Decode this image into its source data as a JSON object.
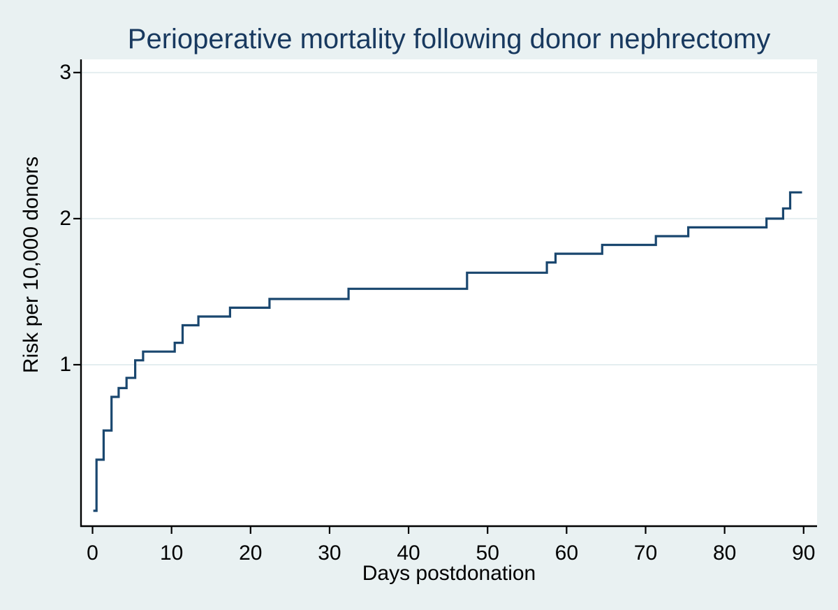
{
  "colors": {
    "page_bg": "#e9f1f2",
    "plot_bg": "#ffffff",
    "gridline": "#e4eef0",
    "axis": "#000000",
    "curve": "#1a476f",
    "title": "#18395f"
  },
  "chart_data": {
    "type": "line",
    "subtype": "step-function cumulative incidence curve",
    "title": "Perioperative mortality following donor nephrectomy",
    "xlabel": "Days postdonation",
    "ylabel": "Risk per 10,000 donors",
    "x_ticks": [
      0,
      10,
      20,
      30,
      40,
      50,
      60,
      70,
      80,
      90
    ],
    "y_ticks": [
      1,
      2,
      3
    ],
    "xlim": [
      -1.46,
      91.7
    ],
    "ylim": [
      -0.105,
      3.09
    ],
    "grid": "horizontal gridlines at each y tick",
    "legend": "none",
    "start": {
      "day": 0.1,
      "risk": 0
    },
    "end_day": 89.8,
    "steps": [
      {
        "day": 0.5,
        "risk": 0.35
      },
      {
        "day": 1.4,
        "risk": 0.55
      },
      {
        "day": 2.4,
        "risk": 0.78
      },
      {
        "day": 3.3,
        "risk": 0.84
      },
      {
        "day": 4.3,
        "risk": 0.91
      },
      {
        "day": 5.4,
        "risk": 1.03
      },
      {
        "day": 6.4,
        "risk": 1.09
      },
      {
        "day": 10.4,
        "risk": 1.15
      },
      {
        "day": 11.4,
        "risk": 1.27
      },
      {
        "day": 13.4,
        "risk": 1.33
      },
      {
        "day": 17.4,
        "risk": 1.39
      },
      {
        "day": 22.4,
        "risk": 1.45
      },
      {
        "day": 32.4,
        "risk": 1.52
      },
      {
        "day": 47.4,
        "risk": 1.63
      },
      {
        "day": 57.5,
        "risk": 1.7
      },
      {
        "day": 58.6,
        "risk": 1.76
      },
      {
        "day": 64.5,
        "risk": 1.82
      },
      {
        "day": 71.3,
        "risk": 1.88
      },
      {
        "day": 75.4,
        "risk": 1.94
      },
      {
        "day": 85.3,
        "risk": 2.0
      },
      {
        "day": 87.4,
        "risk": 2.07
      },
      {
        "day": 88.3,
        "risk": 2.18
      }
    ]
  }
}
